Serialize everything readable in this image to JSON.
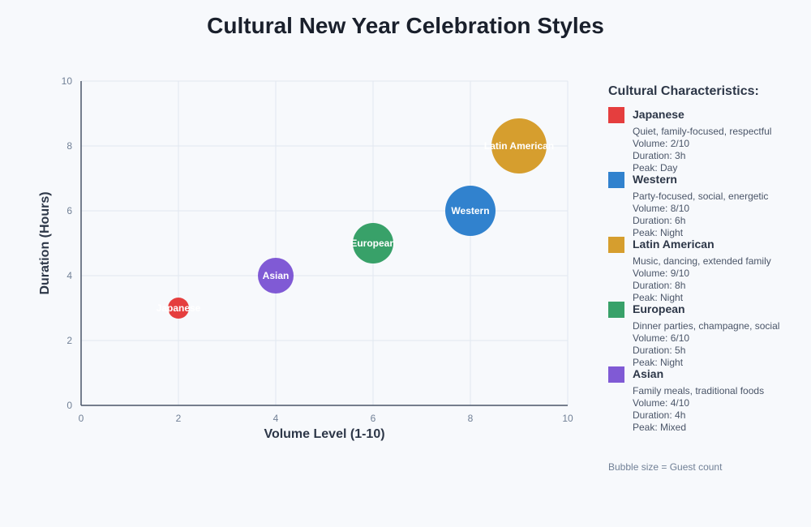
{
  "chart_data": {
    "type": "scatter",
    "title": "Cultural New Year Celebration Styles",
    "xlabel": "Volume Level (1-10)",
    "ylabel": "Duration (Hours)",
    "xlim": [
      0,
      10
    ],
    "ylim": [
      0,
      10
    ],
    "xticks": [
      0,
      2,
      4,
      6,
      8,
      10
    ],
    "yticks": [
      0,
      2,
      4,
      6,
      8,
      10
    ],
    "grid": true,
    "points": [
      {
        "label": "Japanese",
        "x": 2,
        "y": 3,
        "size": 13,
        "color": "#e53e3e"
      },
      {
        "label": "Asian",
        "x": 4,
        "y": 4,
        "size": 22,
        "color": "#805ad5"
      },
      {
        "label": "European",
        "x": 6,
        "y": 5,
        "size": 25,
        "color": "#38a169"
      },
      {
        "label": "Western",
        "x": 8,
        "y": 6,
        "size": 31,
        "color": "#3182ce"
      },
      {
        "label": "Latin American",
        "x": 9,
        "y": 8,
        "size": 34,
        "color": "#d69e2e"
      }
    ]
  },
  "legend": {
    "title": "Cultural Characteristics:",
    "items": [
      {
        "name": "Japanese",
        "color": "#e53e3e",
        "description": "Quiet, family-focused, respectful",
        "volume": "Volume: 2/10",
        "duration": "Duration: 3h",
        "peak": "Peak: Day"
      },
      {
        "name": "Western",
        "color": "#3182ce",
        "description": "Party-focused, social, energetic",
        "volume": "Volume: 8/10",
        "duration": "Duration: 6h",
        "peak": "Peak: Night"
      },
      {
        "name": "Latin American",
        "color": "#d69e2e",
        "description": "Music, dancing, extended family",
        "volume": "Volume: 9/10",
        "duration": "Duration: 8h",
        "peak": "Peak: Night"
      },
      {
        "name": "European",
        "color": "#38a169",
        "description": "Dinner parties, champagne, social",
        "volume": "Volume: 6/10",
        "duration": "Duration: 5h",
        "peak": "Peak: Night"
      },
      {
        "name": "Asian",
        "color": "#805ad5",
        "description": "Family meals, traditional foods",
        "volume": "Volume: 4/10",
        "duration": "Duration: 4h",
        "peak": "Peak: Mixed"
      }
    ]
  },
  "note": "Bubble size = Guest count"
}
